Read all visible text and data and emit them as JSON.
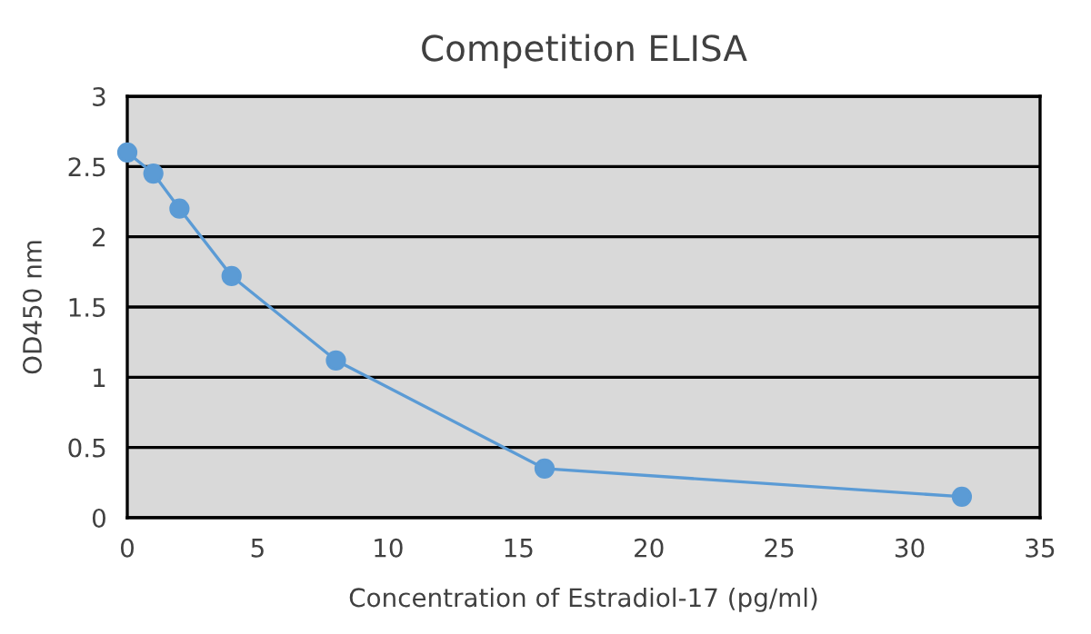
{
  "chart_data": {
    "type": "line",
    "title": "Competition ELISA",
    "xlabel": "Concentration of Estradiol-17 (pg/ml)",
    "ylabel": "OD450 nm",
    "x": [
      0,
      1,
      2,
      4,
      8,
      16,
      32
    ],
    "series": [
      {
        "color": "#5b9bd5",
        "values": [
          2.6,
          2.45,
          2.2,
          1.72,
          1.12,
          0.35,
          0.15
        ]
      }
    ],
    "xlim": [
      0,
      35
    ],
    "xticks": [
      0,
      5,
      10,
      15,
      20,
      25,
      30,
      35
    ],
    "ylim": [
      0,
      3
    ],
    "yticks": [
      0,
      0.5,
      1,
      1.5,
      2,
      2.5,
      3
    ],
    "grid": "y",
    "marker": "circle",
    "line_style": "solid"
  }
}
